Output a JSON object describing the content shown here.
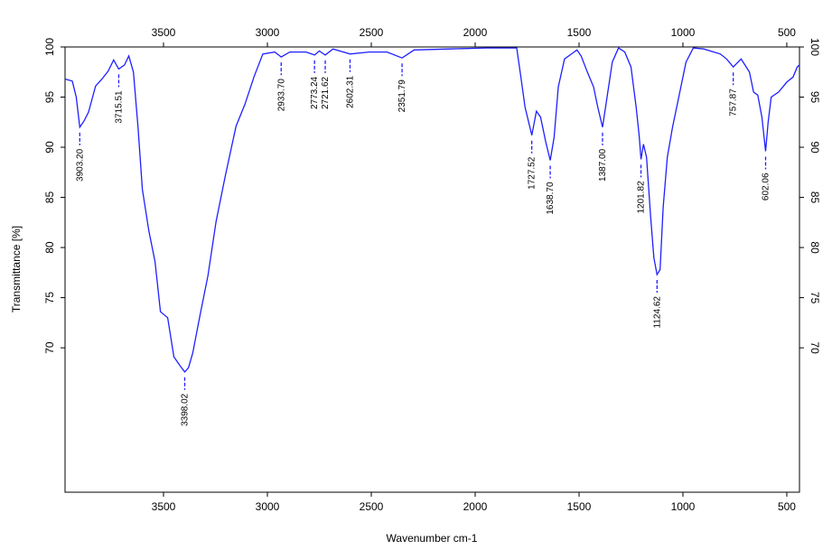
{
  "chart_data": {
    "type": "line",
    "xlabel": "Wavenumber cm-1",
    "ylabel": "Transmittance [%]",
    "xlim": [
      3974,
      439
    ],
    "ylim": [
      55.6,
      100
    ],
    "xticks": [
      3500,
      3000,
      2500,
      2000,
      1500,
      1000,
      500
    ],
    "yticks": [
      70,
      75,
      80,
      85,
      90,
      95,
      100
    ],
    "series": [
      {
        "color": "#1f1fff",
        "x": [
          3974,
          3939,
          3920,
          3903.2,
          3883,
          3861,
          3827,
          3796,
          3766,
          3740,
          3715.51,
          3688,
          3667,
          3645,
          3623,
          3602,
          3571,
          3541,
          3515,
          3480,
          3450,
          3420,
          3398.02,
          3380,
          3359,
          3325,
          3286,
          3247,
          3203,
          3151,
          3108,
          3065,
          3022,
          2965,
          2933.7,
          2892,
          2814,
          2773.24,
          2750,
          2721.62,
          2684,
          2602.31,
          2511,
          2424,
          2351.79,
          2294,
          2121,
          1948,
          1800,
          1780,
          1760,
          1727.52,
          1705,
          1685,
          1660,
          1638.7,
          1620,
          1600,
          1570,
          1510,
          1490,
          1460,
          1430,
          1410,
          1387,
          1365,
          1340,
          1310,
          1280,
          1250,
          1225,
          1210,
          1201.82,
          1190,
          1175,
          1155,
          1140,
          1124.62,
          1110,
          1095,
          1075,
          1050,
          1020,
          985,
          950,
          900,
          820,
          790,
          757.87,
          720,
          680,
          660,
          640,
          620,
          602.06,
          590,
          575,
          540,
          500,
          470,
          450,
          439
        ],
        "values": [
          96.8,
          96.6,
          95,
          92.0,
          92.6,
          93.5,
          96.1,
          96.8,
          97.6,
          98.7,
          97.8,
          98.2,
          99.1,
          97.5,
          92.1,
          85.8,
          81.7,
          78.6,
          73.6,
          73.0,
          69.1,
          68.2,
          67.6,
          68.0,
          69.5,
          73.2,
          77.2,
          82.6,
          87.1,
          92.1,
          94.3,
          97.0,
          99.3,
          99.5,
          99.0,
          99.5,
          99.5,
          99.2,
          99.6,
          99.2,
          99.8,
          99.3,
          99.5,
          99.5,
          98.9,
          99.7,
          99.8,
          99.9,
          99.9,
          97,
          94,
          91.2,
          93.6,
          93.0,
          90.5,
          88.7,
          91,
          96,
          98.8,
          99.7,
          99.1,
          97.5,
          96,
          94,
          92,
          95,
          98.5,
          99.9,
          99.5,
          98,
          94,
          91,
          88.8,
          90.3,
          89,
          83,
          79,
          77.3,
          77.8,
          84,
          89,
          92,
          95,
          98.5,
          99.9,
          99.8,
          99.3,
          98.8,
          98.0,
          98.8,
          97.5,
          95.5,
          95.2,
          93,
          89.6,
          92.5,
          95,
          95.5,
          96.5,
          97.0,
          98.0,
          98.2
        ]
      }
    ],
    "peaks": [
      {
        "x": 3903.2,
        "y": 92.0,
        "label": "3903.20"
      },
      {
        "x": 3715.51,
        "y": 97.8,
        "label": "3715.51"
      },
      {
        "x": 3398.02,
        "y": 67.6,
        "label": "3398.02"
      },
      {
        "x": 2933.7,
        "y": 99.0,
        "label": "2933.70"
      },
      {
        "x": 2773.24,
        "y": 99.2,
        "label": "2773.24"
      },
      {
        "x": 2721.62,
        "y": 99.2,
        "label": "2721.62"
      },
      {
        "x": 2602.31,
        "y": 99.3,
        "label": "2602.31"
      },
      {
        "x": 2351.79,
        "y": 98.9,
        "label": "2351.79"
      },
      {
        "x": 1727.52,
        "y": 91.2,
        "label": "1727.52"
      },
      {
        "x": 1638.7,
        "y": 88.7,
        "label": "1638.70"
      },
      {
        "x": 1387,
        "y": 92.0,
        "label": "1387.00"
      },
      {
        "x": 1201.82,
        "y": 88.8,
        "label": "1201.82"
      },
      {
        "x": 1124.62,
        "y": 77.3,
        "label": "1124.62"
      },
      {
        "x": 757.87,
        "y": 98.0,
        "label": "757.87"
      },
      {
        "x": 602.06,
        "y": 89.6,
        "label": "602.06"
      }
    ]
  }
}
